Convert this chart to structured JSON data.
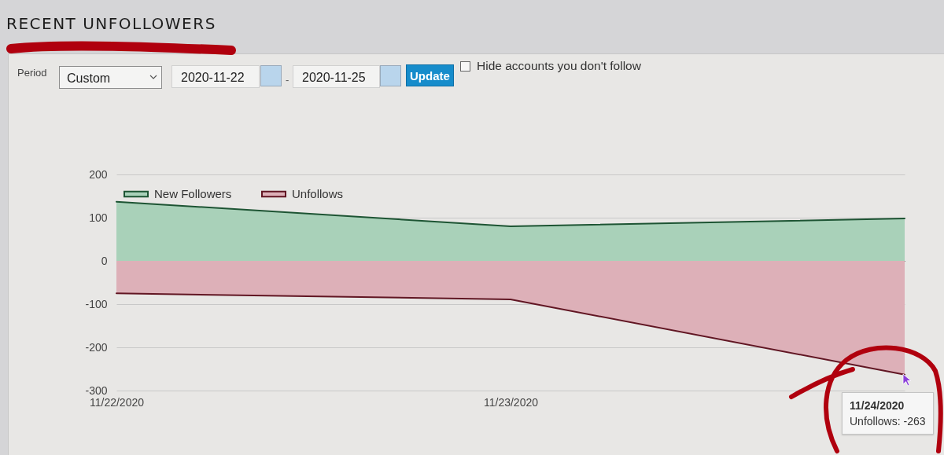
{
  "chart_data": {
    "type": "area",
    "title": "RECENT UNFOLLOWERS",
    "categories": [
      "11/22/2020",
      "11/23/2020",
      null
    ],
    "series": [
      {
        "name": "New Followers",
        "color": "#a9d1b9",
        "values": [
          137,
          80,
          98
        ]
      },
      {
        "name": "Unfollows",
        "color": "#ddb0b8",
        "values": [
          -75,
          -89,
          -263
        ]
      }
    ],
    "ylim": [
      -300,
      200
    ],
    "yticks": [
      -300,
      -200,
      -100,
      0,
      100,
      200
    ],
    "grid": "y",
    "legend": "top left",
    "annotations": [
      "Period",
      "Custom",
      "2020-11-22",
      "-",
      "2020-11-25",
      "Update",
      "Hide accounts you don't follow",
      "11/24/2020",
      "Unfollows: -263"
    ]
  }
}
